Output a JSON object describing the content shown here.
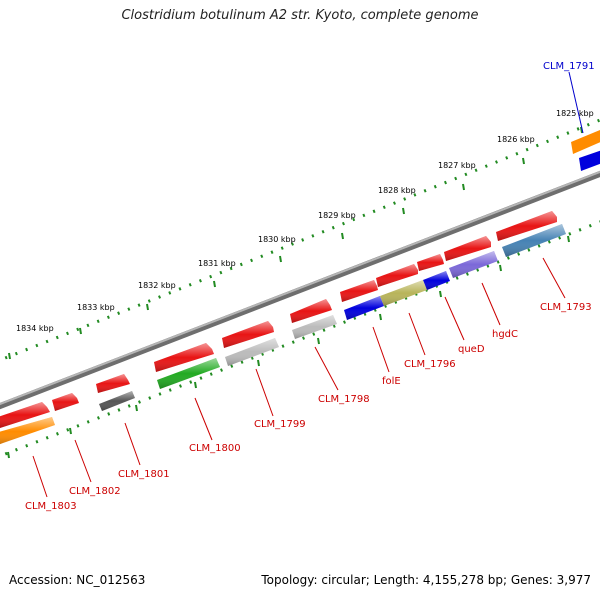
{
  "title": "Clostridium botulinum A2 str. Kyoto, complete genome",
  "footer": {
    "accession": "Accession: NC_012563",
    "summary": "Topology: circular; Length: 4,155,278 bp; Genes: 3,977"
  },
  "scale_labels": [
    "1834 kbp",
    "1833 kbp",
    "1832 kbp",
    "1831 kbp",
    "1830 kbp",
    "1829 kbp",
    "1828 kbp",
    "1827 kbp",
    "1826 kbp",
    "1825 kbp"
  ],
  "gene_labels": [
    {
      "text": "CLM_1791",
      "color": "#0000cc"
    },
    {
      "text": "CLM_1793",
      "color": "#cc0000"
    },
    {
      "text": "hgdC",
      "color": "#cc0000"
    },
    {
      "text": "queD",
      "color": "#cc0000"
    },
    {
      "text": "CLM_1796",
      "color": "#cc0000"
    },
    {
      "text": "folE",
      "color": "#cc0000"
    },
    {
      "text": "CLM_1798",
      "color": "#cc0000"
    },
    {
      "text": "CLM_1799",
      "color": "#cc0000"
    },
    {
      "text": "CLM_1800",
      "color": "#cc0000"
    },
    {
      "text": "CLM_1801",
      "color": "#cc0000"
    },
    {
      "text": "CLM_1802",
      "color": "#cc0000"
    },
    {
      "text": "CLM_1803",
      "color": "#cc0000"
    }
  ],
  "colors": {
    "backbone": "#8a8a8a",
    "tick": "#228b22",
    "cds": "#ee1111",
    "label_line": "#cc0000"
  }
}
